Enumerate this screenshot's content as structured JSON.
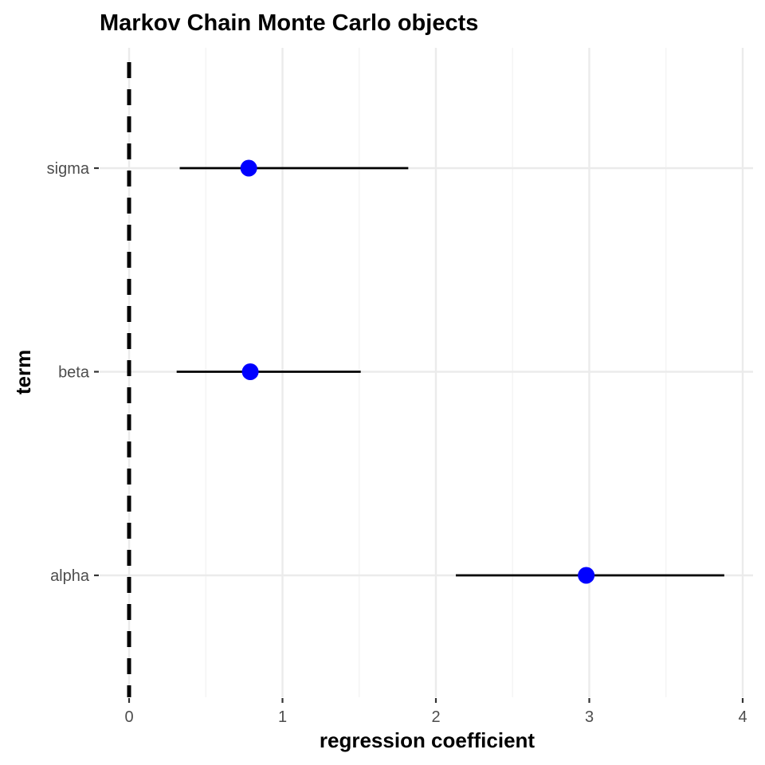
{
  "chart_data": {
    "type": "scatter",
    "title": "Markov Chain Monte Carlo objects",
    "xlabel": "regression coefficient",
    "ylabel": "term",
    "xlim": [
      0,
      4
    ],
    "x_ticks": [
      0,
      1,
      2,
      3,
      4
    ],
    "x_tick_labels": [
      "0",
      "1",
      "2",
      "3",
      "4"
    ],
    "categories": [
      "alpha",
      "beta",
      "sigma"
    ],
    "estimates": [
      {
        "term": "alpha",
        "estimate": 2.98,
        "low": 2.13,
        "high": 3.88
      },
      {
        "term": "beta",
        "estimate": 0.79,
        "low": 0.31,
        "high": 1.51
      },
      {
        "term": "sigma",
        "estimate": 0.78,
        "low": 0.33,
        "high": 1.82
      }
    ],
    "reference_line": {
      "x": 0,
      "style": "dashed"
    },
    "grid": true,
    "legend": "none",
    "point_color": "#0000ff",
    "line_color": "#000000",
    "grid_color": "#ebebeb"
  }
}
